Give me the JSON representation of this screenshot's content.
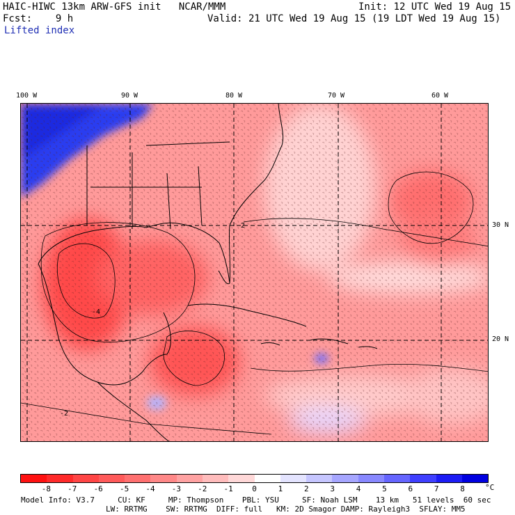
{
  "header": {
    "title_left": "HAIC-HIWC 13km ARW-GFS init   NCAR/MMM",
    "init": "Init: 12 UTC Wed 19 Aug 15",
    "fcst": "Fcst:    9 h",
    "valid": "Valid: 21 UTC Wed 19 Aug 15 (19 LDT Wed 19 Aug 15)",
    "field": "Lifted index"
  },
  "map": {
    "lon_labels": [
      "100 W",
      "90 W",
      "80 W",
      "70 W",
      "60 W"
    ],
    "lat_labels": [
      "30 N",
      "20 N"
    ],
    "contour_labels": [
      "-2",
      "-2",
      "-4"
    ]
  },
  "colorbar": {
    "ticks": [
      "-8",
      "-7",
      "-6",
      "-5",
      "-4",
      "-3",
      "-2",
      "-1",
      "0",
      "1",
      "2",
      "3",
      "4",
      "5",
      "6",
      "7",
      "8"
    ],
    "unit": "°C",
    "colors": [
      "#ff1111",
      "#ff2a2a",
      "#ff4545",
      "#ff5a5a",
      "#ff7070",
      "#ff8888",
      "#ffa2a2",
      "#ffbcbc",
      "#ffd8d8",
      "#ffffff",
      "#e4e4ff",
      "#c6c6ff",
      "#a6a6ff",
      "#8888ff",
      "#6565ff",
      "#3f3fff",
      "#1c1cf5",
      "#0000e0"
    ]
  },
  "footer": {
    "line1": "Model Info: V3.7     CU: KF     MP: Thompson    PBL: YSU     SF: Noah LSM    13 km   51 levels  60 sec",
    "line2": "LW: RRTMG    SW: RRTMG  DIFF: full   KM: 2D Smagor DAMP: Rayleigh3  SFLAY: MM5"
  }
}
